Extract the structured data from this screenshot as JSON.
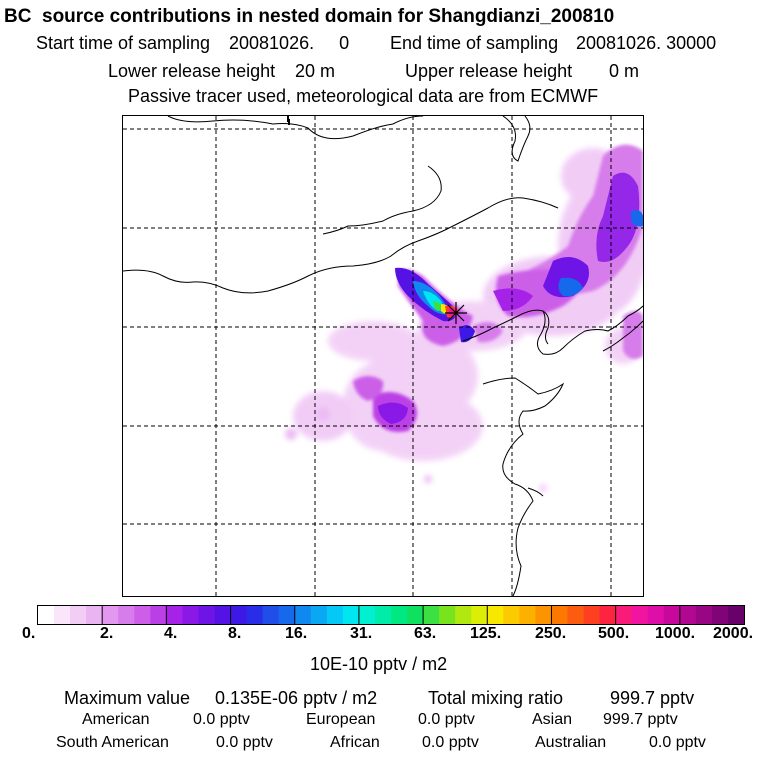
{
  "title": "BC  source contributions in nested domain for Shangdianzi_200810",
  "header": {
    "start_label": "Start time of sampling",
    "start_value": "20081026.     0",
    "end_label": "End time of sampling",
    "end_value": "20081026. 30000",
    "lower_label": "Lower release height",
    "lower_value": "20 m",
    "upper_label": "Upper release height",
    "upper_value": "0 m",
    "tracer_note": "Passive tracer used, meteorological data are from ECMWF"
  },
  "map": {
    "receptor_marker": "receptor-star",
    "plume_description_hidden": true
  },
  "colorbar": {
    "unit": "10E-10 pptv / m2",
    "ticks": [
      "0.",
      "2.",
      "4.",
      "8.",
      "16.",
      "31.",
      "63.",
      "125.",
      "250.",
      "500.",
      "1000.",
      "2000."
    ],
    "colors": [
      "#ffffff",
      "#f9e6fb",
      "#f2cdf6",
      "#eab3f2",
      "#e198ee",
      "#d77ceb",
      "#cc5ee8",
      "#bb3fe6",
      "#a622e8",
      "#8a19e8",
      "#6e14e6",
      "#5512e4",
      "#3d18e6",
      "#2a2de8",
      "#1f4ee8",
      "#1769ec",
      "#0f88f0",
      "#0aa8f3",
      "#05c8f6",
      "#00e6f0",
      "#00f0d0",
      "#00eca8",
      "#00e882",
      "#10e060",
      "#3ce040",
      "#78e41e",
      "#b0e810",
      "#dcee08",
      "#f8e800",
      "#fcca00",
      "#fcb000",
      "#fc9400",
      "#fc7800",
      "#fc5c10",
      "#fc4020",
      "#fc2440",
      "#f81c78",
      "#f014a0",
      "#e00ea8",
      "#c8089c",
      "#b00890",
      "#980684",
      "#800478",
      "#68026a"
    ]
  },
  "summary": {
    "max_label": "Maximum value",
    "max_value": "0.135E-06 pptv / m2",
    "total_label": "Total mixing ratio",
    "total_value": "999.7 pptv",
    "american_label": "American",
    "american_value": "0.0 pptv",
    "european_label": "European",
    "european_value": "0.0 pptv",
    "asian_label": "Asian",
    "asian_value": "999.7 pptv",
    "south_american_label": "South American",
    "south_american_value": "0.0 pptv",
    "african_label": "African",
    "african_value": "0.0 pptv",
    "australian_label": "Australian",
    "australian_value": "0.0 pptv"
  }
}
